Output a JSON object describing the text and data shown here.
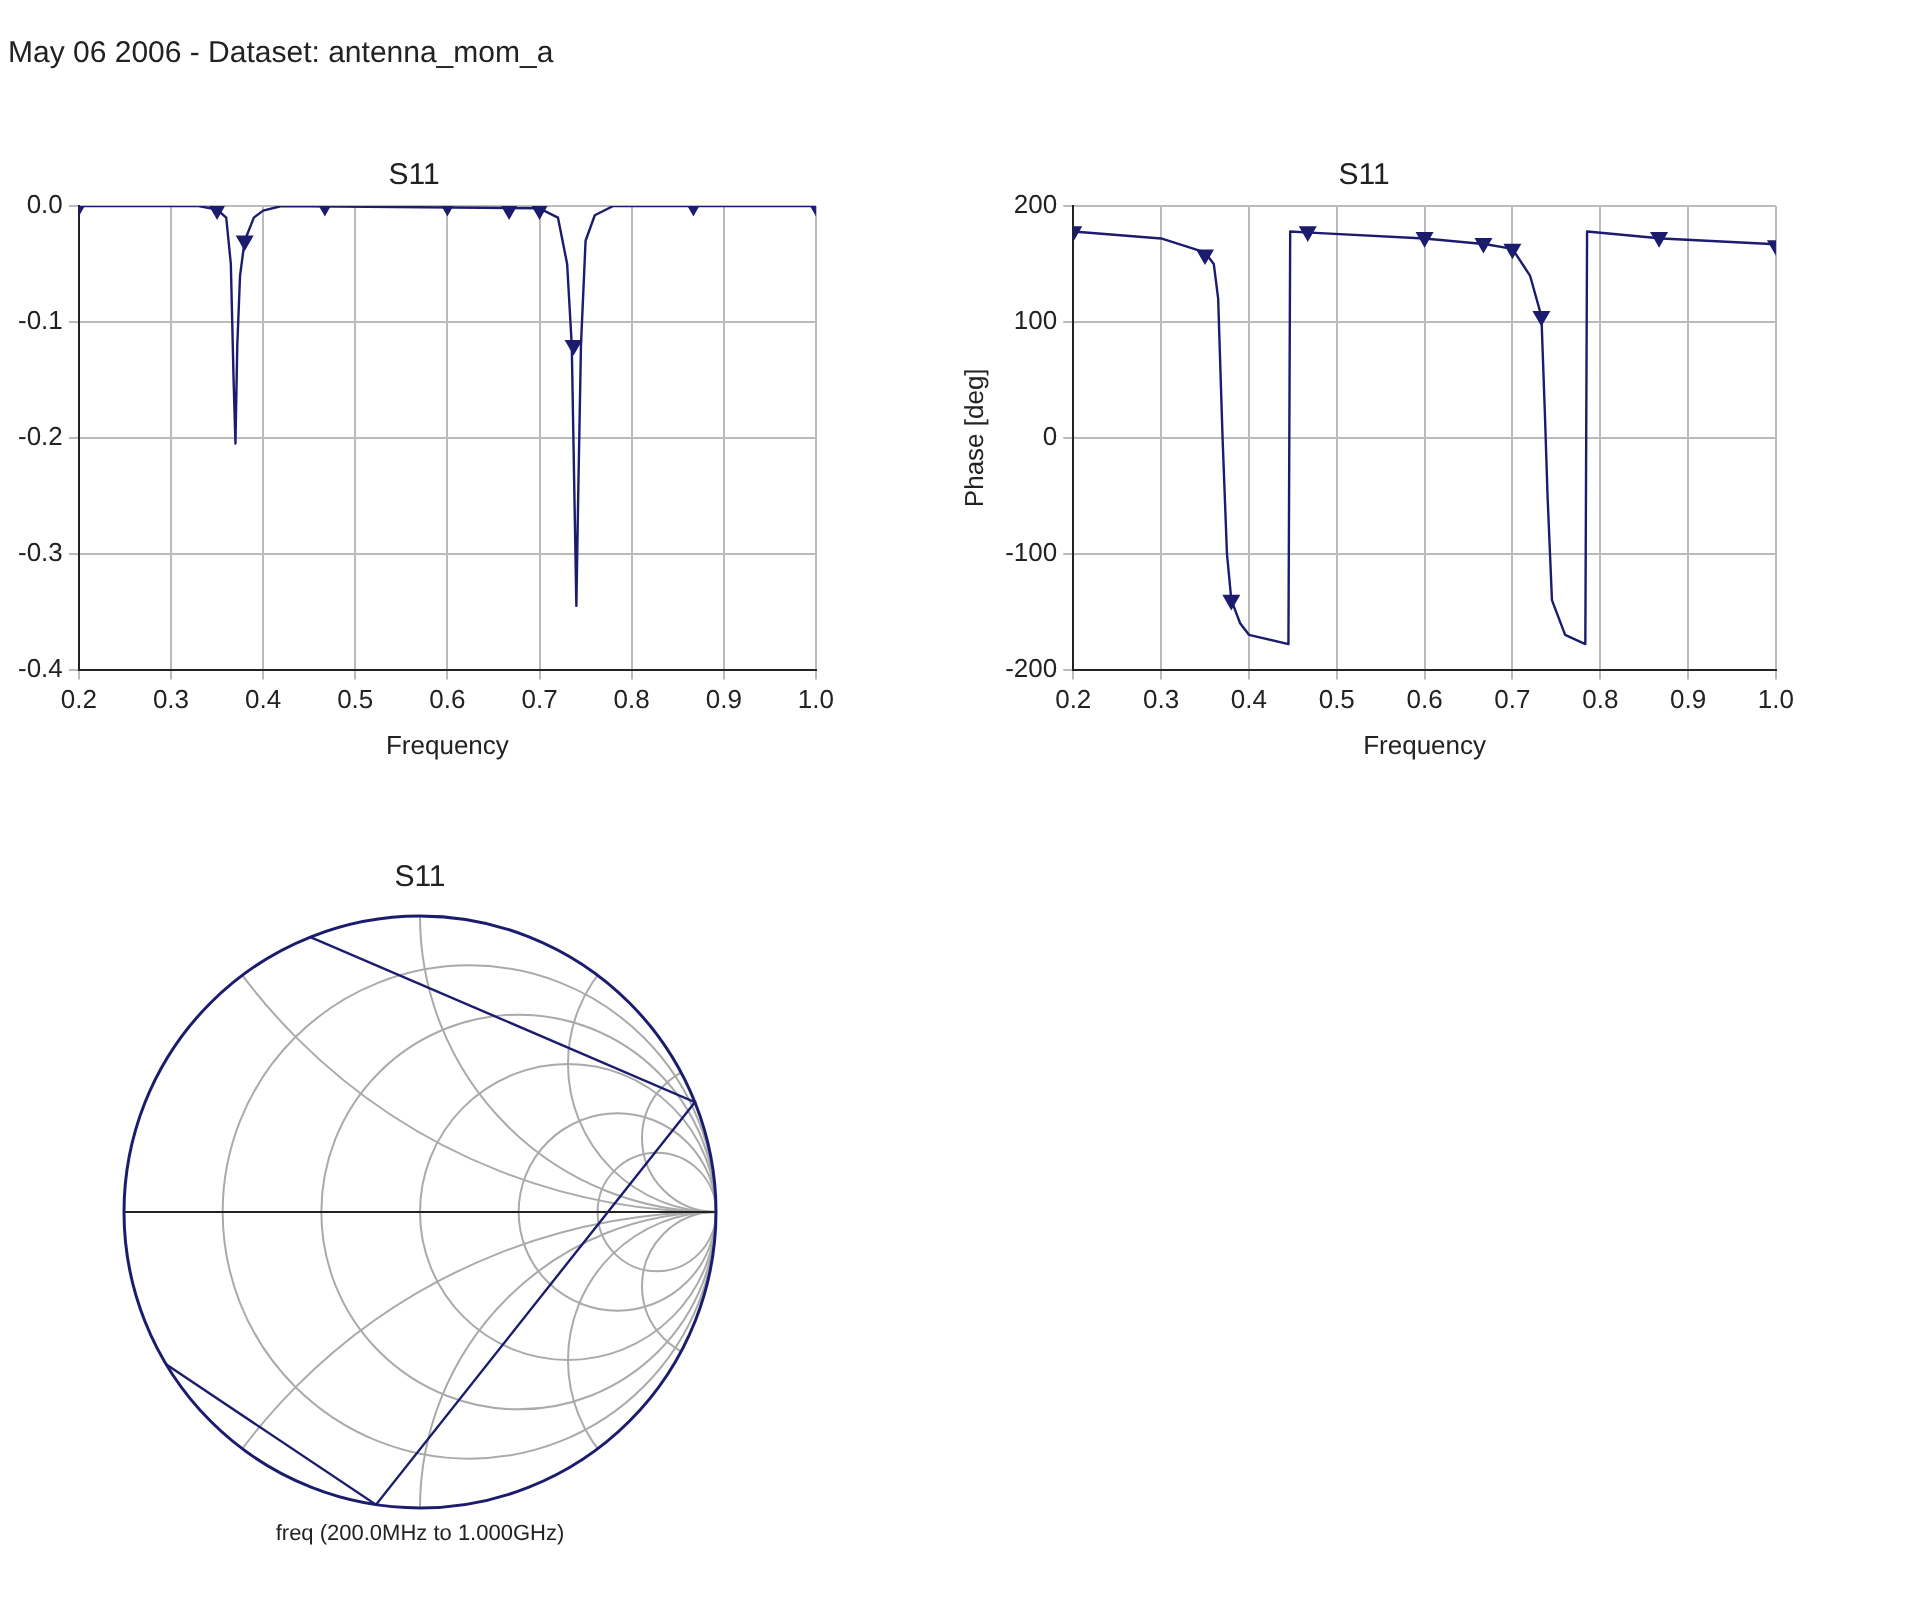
{
  "chart_data": [
    {
      "type": "line",
      "title": "S11",
      "xlabel": "Frequency",
      "annotations": [
        "May 06 2006 - Dataset: antenna_mom_a"
      ],
      "xlim": [
        0.2,
        1.0
      ],
      "ylim": [
        -0.4,
        0.0
      ],
      "xticks": [
        0.2,
        0.3,
        0.4,
        0.5,
        0.6,
        0.7,
        0.8,
        0.9,
        {
          "value": 1.0,
          "label": "1.0"
        }
      ],
      "yticks": [
        {
          "value": -0.4,
          "label": "-0.4"
        },
        -0.3,
        -0.2,
        -0.1,
        {
          "value": 0,
          "label": "0.0"
        }
      ],
      "grid": true,
      "series": [
        {
          "type": "line",
          "color": "#1c1c6e",
          "marker": "none",
          "line_style": "solid",
          "x": [
            0.2,
            0.33,
            0.35,
            0.36,
            0.365,
            0.368,
            0.37,
            0.372,
            0.375,
            0.38,
            0.39,
            0.4,
            0.42,
            0.7,
            0.72,
            0.73,
            0.735,
            0.74,
            0.742,
            0.745,
            0.75,
            0.76,
            0.78,
            1.0
          ],
          "values": [
            0,
            0,
            -0.003,
            -0.01,
            -0.05,
            -0.15,
            -0.205,
            -0.12,
            -0.06,
            -0.03,
            -0.01,
            -0.004,
            0,
            -0.002,
            -0.01,
            -0.05,
            -0.12,
            -0.345,
            -0.25,
            -0.12,
            -0.03,
            -0.008,
            0,
            0
          ]
        },
        {
          "type": "scatter",
          "color": "#1c1c6e",
          "marker": "triangle",
          "x": [
            0.2,
            0.35,
            0.38,
            0.467,
            0.6,
            0.667,
            0.7,
            0.737,
            0.867,
            1.0
          ],
          "values": [
            0,
            -0.003,
            -0.03,
            0,
            0,
            -0.003,
            -0.003,
            -0.12,
            0,
            0
          ]
        }
      ]
    },
    {
      "type": "line",
      "title": "S11",
      "xlabel": "Frequency",
      "ylabel": "Phase [deg]",
      "xlim": [
        0.2,
        1.0
      ],
      "ylim": [
        -200,
        200
      ],
      "xticks": [
        0.2,
        0.3,
        0.4,
        0.5,
        0.6,
        0.7,
        0.8,
        0.9,
        {
          "value": 1.0,
          "label": "1.0"
        }
      ],
      "yticks": [
        -200,
        -100,
        0,
        100,
        200
      ],
      "grid": true,
      "series": [
        {
          "type": "line",
          "color": "#1c1c6e",
          "marker": "none",
          "line_style": "solid",
          "x": [
            0.2,
            0.3,
            0.35,
            0.36,
            0.365,
            0.37,
            0.375,
            0.38,
            0.39,
            0.4,
            0.445,
            0.447,
            0.47,
            0.6,
            0.67,
            0.7,
            0.72,
            0.733,
            0.737,
            0.74,
            0.745,
            0.76,
            0.783,
            0.785,
            0.87,
            1.0
          ],
          "values": [
            178,
            172,
            160,
            150,
            120,
            0,
            -100,
            -140,
            -160,
            -170,
            -178,
            178,
            177,
            172,
            167,
            163,
            140,
            105,
            20,
            -50,
            -140,
            -170,
            -178,
            178,
            172,
            167
          ]
        },
        {
          "type": "scatter",
          "color": "#1c1c6e",
          "marker": "triangle",
          "x": [
            0.2,
            0.35,
            0.38,
            0.467,
            0.6,
            0.667,
            0.7,
            0.733,
            0.867,
            1.0
          ],
          "values": [
            178,
            158,
            -140,
            178,
            173,
            168,
            163,
            105,
            173,
            166
          ]
        }
      ]
    },
    {
      "type": "other",
      "title": "S11",
      "annotations": [
        "freq (200.0MHz to 1.000GHz)"
      ]
    }
  ]
}
